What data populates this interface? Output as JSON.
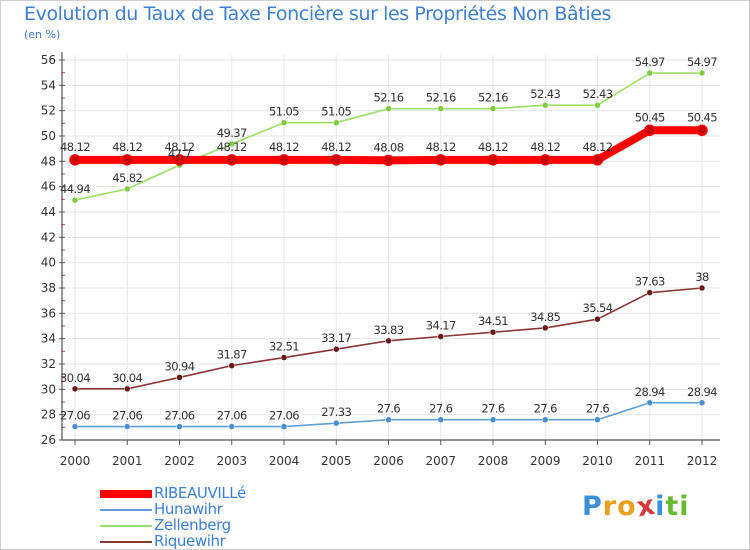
{
  "title": "Evolution du Taux de Taxe Foncière sur les Propriétés Non Bâties",
  "unit": "(en %)",
  "logo": {
    "letters": [
      "P",
      "r",
      "o",
      "x",
      "i",
      "t",
      "i"
    ],
    "colors": [
      "#3a8fd8",
      "#e8a020",
      "#e8a020",
      "#d83a3a",
      "#3a8fd8",
      "#66bb33",
      "#66bb33"
    ]
  },
  "chart_data": {
    "type": "line",
    "title": "Evolution du Taux de Taxe Foncière sur les Propriétés Non Bâties",
    "ylabel": "(en %)",
    "xlabel": "",
    "categories": [
      "2000",
      "2001",
      "2002",
      "2003",
      "2004",
      "2005",
      "2006",
      "2007",
      "2008",
      "2009",
      "2010",
      "2011",
      "2012"
    ],
    "ylim": [
      26,
      56
    ],
    "yticks": [
      "26",
      "28",
      "30",
      "32",
      "34",
      "36",
      "38",
      "40",
      "42",
      "44",
      "46",
      "48",
      "50",
      "52",
      "54",
      "56"
    ],
    "grid": true,
    "legend_position": "bottom-left",
    "series": [
      {
        "name": "RIBEAUVILLé",
        "color": "#ff0000",
        "marker": "#cc0000",
        "thick": true,
        "values": [
          48.12,
          48.12,
          48.12,
          48.12,
          48.12,
          48.12,
          48.08,
          48.12,
          48.12,
          48.12,
          48.12,
          50.45,
          50.45
        ],
        "labels": [
          "48.12",
          "48.12",
          "48.12",
          "48.12",
          "48.12",
          "48.12",
          "48.08",
          "48.12",
          "48.12",
          "48.12",
          "48.12",
          "50.45",
          "50.45"
        ]
      },
      {
        "name": "Hunawihr",
        "color": "#5f9fd5",
        "marker": "#4a90d0",
        "thick": false,
        "values": [
          27.06,
          27.06,
          27.06,
          27.06,
          27.06,
          27.33,
          27.6,
          27.6,
          27.6,
          27.6,
          27.6,
          28.94,
          28.94
        ],
        "labels": [
          "27.06",
          "27.06",
          "27.06",
          "27.06",
          "27.06",
          "27.33",
          "27.6",
          "27.6",
          "27.6",
          "27.6",
          "27.6",
          "28.94",
          "28.94"
        ]
      },
      {
        "name": "Zellenberg",
        "color": "#9ddd6a",
        "marker": "#7fcc44",
        "thick": false,
        "values": [
          44.94,
          45.82,
          47.7,
          49.37,
          51.05,
          51.05,
          52.16,
          52.16,
          52.16,
          52.43,
          52.43,
          54.97,
          54.97
        ],
        "labels": [
          "44.94",
          "45.82",
          "47.7",
          "49.37",
          "51.05",
          "51.05",
          "52.16",
          "52.16",
          "52.16",
          "52.43",
          "52.43",
          "54.97",
          "54.97"
        ]
      },
      {
        "name": "Riquewihr",
        "color": "#8b3535",
        "marker": "#661a1a",
        "thick": false,
        "values": [
          30.04,
          30.04,
          30.94,
          31.87,
          32.51,
          33.17,
          33.83,
          34.17,
          34.51,
          34.85,
          35.54,
          37.63,
          38
        ],
        "labels": [
          "30.04",
          "30.04",
          "30.94",
          "31.87",
          "32.51",
          "33.17",
          "33.83",
          "34.17",
          "34.51",
          "34.85",
          "35.54",
          "37.63",
          "38"
        ]
      }
    ]
  }
}
